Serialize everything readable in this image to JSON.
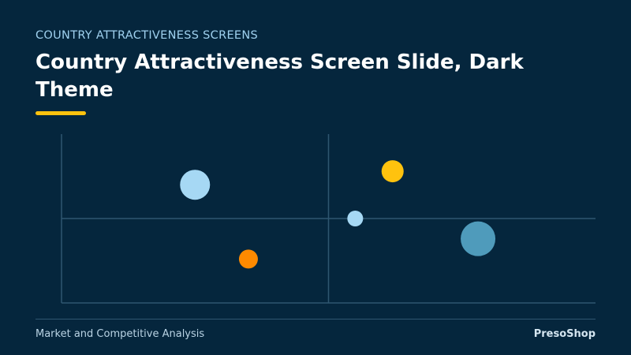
{
  "header": {
    "eyebrow": "COUNTRY ATTRACTIVENESS SCREENS",
    "title": "Country Attractiveness Screen Slide, Dark Theme",
    "accent_color": "#ffc20e"
  },
  "footer": {
    "left_text": "Market and Competitive Analysis",
    "right_text": "PresoShop"
  },
  "chart_data": {
    "type": "scatter",
    "title": "",
    "xlabel": "",
    "ylabel": "",
    "xlim": [
      0,
      100
    ],
    "ylim": [
      0,
      100
    ],
    "grid": false,
    "quadrant_lines": {
      "x": 50,
      "y": 50
    },
    "axis_color": "#2f5670",
    "points": [
      {
        "x": 25,
        "y": 70,
        "size": 19,
        "color": "#a6d8f4"
      },
      {
        "x": 35,
        "y": 26,
        "size": 12,
        "color": "#ff8a00"
      },
      {
        "x": 55,
        "y": 50,
        "size": 10,
        "color": "#a6d8f4"
      },
      {
        "x": 62,
        "y": 78,
        "size": 14,
        "color": "#ffc20e"
      },
      {
        "x": 78,
        "y": 38,
        "size": 22,
        "color": "#4f9bbb"
      }
    ]
  }
}
